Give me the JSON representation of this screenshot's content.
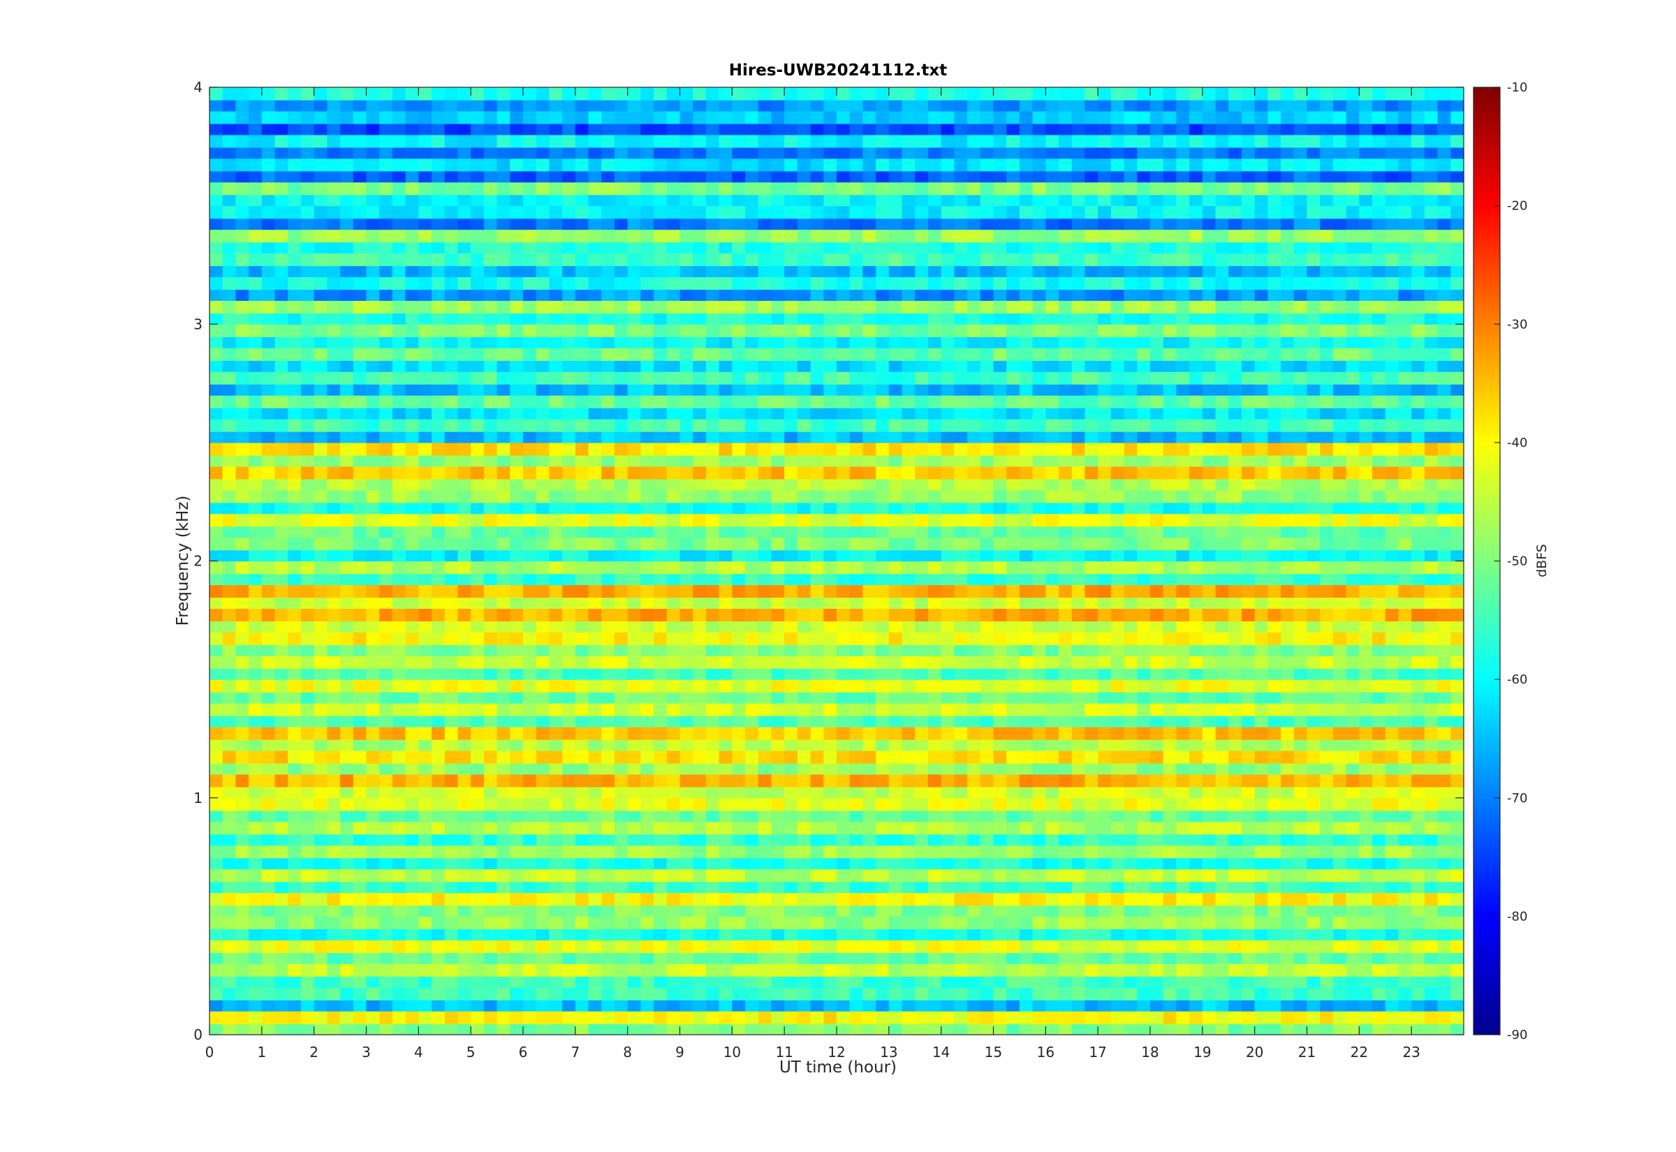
{
  "chart_data": {
    "type": "heatmap",
    "title": "Hires-UWB20241112.txt",
    "xlabel": "UT time (hour)",
    "ylabel": "Frequency (kHz)",
    "colorbar_label": "dBFS",
    "xlim": [
      0,
      24
    ],
    "ylim": [
      0,
      4
    ],
    "clim": [
      -90,
      -10
    ],
    "colormap": "jet",
    "x_ticks": [
      0,
      1,
      2,
      3,
      4,
      5,
      6,
      7,
      8,
      9,
      10,
      11,
      12,
      13,
      14,
      15,
      16,
      17,
      18,
      19,
      20,
      21,
      22,
      23
    ],
    "y_ticks": [
      0,
      1,
      2,
      3,
      4
    ],
    "colorbar_ticks": [
      -10,
      -20,
      -30,
      -40,
      -50,
      -60,
      -70,
      -80,
      -90
    ],
    "grid": false,
    "frequency_bands_khz": [
      0.05,
      0.15,
      0.25,
      0.35,
      0.45,
      0.55,
      0.65,
      0.75,
      0.85,
      0.95,
      1.05,
      1.15,
      1.25,
      1.35,
      1.45,
      1.55,
      1.65,
      1.75,
      1.85,
      1.95,
      2.05,
      2.15,
      2.25,
      2.35,
      2.45,
      2.55,
      2.65,
      2.75,
      2.85,
      2.95,
      3.05,
      3.15,
      3.25,
      3.35,
      3.45,
      3.55,
      3.65,
      3.75,
      3.85,
      3.95
    ],
    "band_level_dbfs": [
      -40,
      -55,
      -45,
      -42,
      -48,
      -40,
      -45,
      -48,
      -46,
      -42,
      -34,
      -38,
      -36,
      -44,
      -42,
      -44,
      -40,
      -34,
      -34,
      -46,
      -50,
      -42,
      -48,
      -36,
      -38,
      -55,
      -52,
      -55,
      -52,
      -50,
      -48,
      -58,
      -55,
      -48,
      -60,
      -50,
      -62,
      -60,
      -64,
      -58
    ]
  }
}
